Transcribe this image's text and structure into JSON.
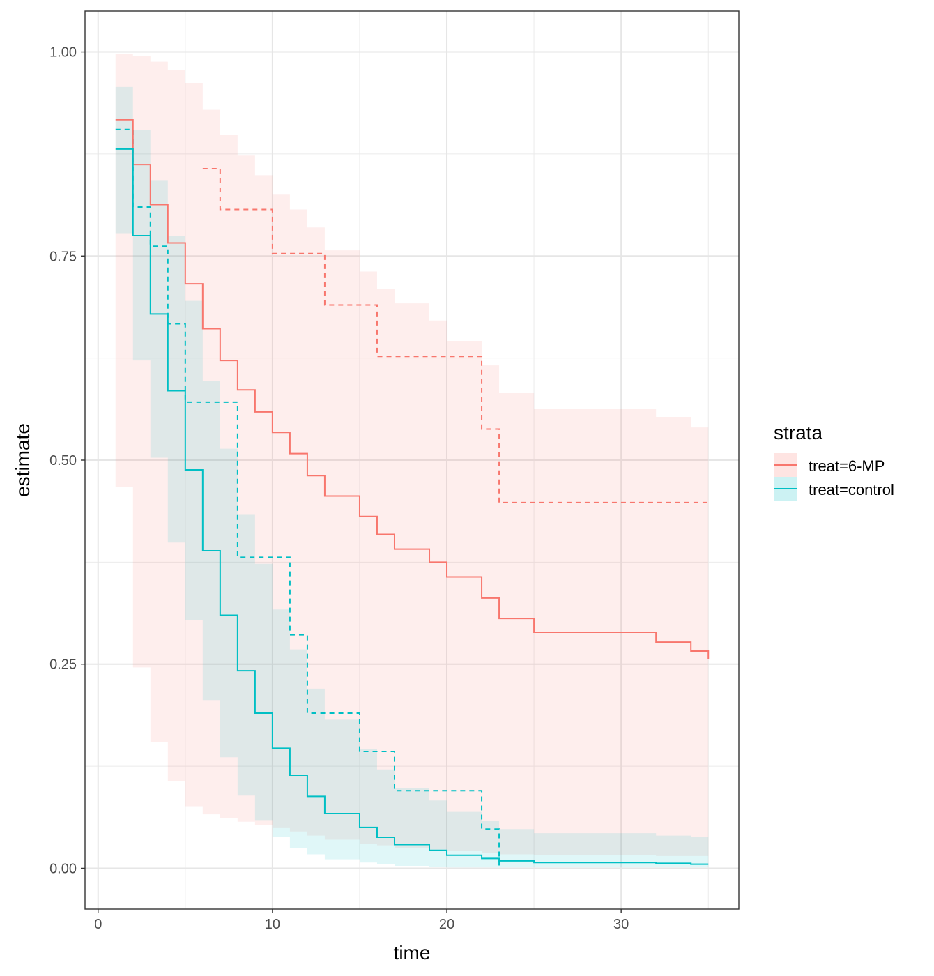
{
  "chart_data": {
    "type": "line",
    "xlabel": "time",
    "ylabel": "estimate",
    "xlim": [
      -0.75,
      36.75
    ],
    "ylim": [
      -0.05,
      1.05
    ],
    "xticks": [
      0,
      10,
      20,
      30
    ],
    "xtick_labels": [
      "0",
      "10",
      "20",
      "30"
    ],
    "yticks": [
      0.0,
      0.25,
      0.5,
      0.75,
      1.0
    ],
    "ytick_labels": [
      "0.00",
      "0.25",
      "0.50",
      "0.75",
      "1.00"
    ],
    "grid": true,
    "legend": {
      "title": "strata",
      "placement": "right",
      "entries": [
        "treat=6-MP",
        "treat=control"
      ]
    },
    "series": [
      {
        "name": "treat=6-MP",
        "color": "#F8766D",
        "steps": [
          {
            "x": 1,
            "estimate": 0.917,
            "lower": 0.467,
            "upper": 0.997
          },
          {
            "x": 2,
            "estimate": 0.862,
            "lower": 0.246,
            "upper": 0.995
          },
          {
            "x": 3,
            "estimate": 0.813,
            "lower": 0.155,
            "upper": 0.988
          },
          {
            "x": 4,
            "estimate": 0.766,
            "lower": 0.107,
            "upper": 0.978
          },
          {
            "x": 5,
            "estimate": 0.716,
            "lower": 0.076,
            "upper": 0.962
          },
          {
            "x": 6,
            "estimate": 0.661,
            "lower": 0.066,
            "upper": 0.929
          },
          {
            "x": 7,
            "estimate": 0.622,
            "lower": 0.061,
            "upper": 0.898
          },
          {
            "x": 8,
            "estimate": 0.586,
            "lower": 0.057,
            "upper": 0.873
          },
          {
            "x": 9,
            "estimate": 0.559,
            "lower": 0.053,
            "upper": 0.849
          },
          {
            "x": 10,
            "estimate": 0.534,
            "lower": 0.05,
            "upper": 0.826
          },
          {
            "x": 11,
            "estimate": 0.508,
            "lower": 0.045,
            "upper": 0.807
          },
          {
            "x": 12,
            "estimate": 0.481,
            "lower": 0.04,
            "upper": 0.785
          },
          {
            "x": 13,
            "estimate": 0.456,
            "lower": 0.035,
            "upper": 0.757
          },
          {
            "x": 15,
            "estimate": 0.431,
            "lower": 0.03,
            "upper": 0.731
          },
          {
            "x": 16,
            "estimate": 0.409,
            "lower": 0.028,
            "upper": 0.71
          },
          {
            "x": 17,
            "estimate": 0.391,
            "lower": 0.025,
            "upper": 0.692
          },
          {
            "x": 19,
            "estimate": 0.375,
            "lower": 0.023,
            "upper": 0.671
          },
          {
            "x": 20,
            "estimate": 0.357,
            "lower": 0.021,
            "upper": 0.646
          },
          {
            "x": 22,
            "estimate": 0.331,
            "lower": 0.019,
            "upper": 0.616
          },
          {
            "x": 23,
            "estimate": 0.306,
            "lower": 0.017,
            "upper": 0.582
          },
          {
            "x": 25,
            "estimate": 0.289,
            "lower": 0.016,
            "upper": 0.563
          },
          {
            "x": 32,
            "estimate": 0.277,
            "lower": 0.015,
            "upper": 0.553
          },
          {
            "x": 34,
            "estimate": 0.266,
            "lower": 0.015,
            "upper": 0.54
          },
          {
            "x": 35,
            "estimate": 0.256,
            "lower": 0.015,
            "upper": 0.54
          }
        ],
        "dashed": [
          {
            "x": 6,
            "y": 0.857
          },
          {
            "x": 7,
            "y": 0.807
          },
          {
            "x": 10,
            "y": 0.753
          },
          {
            "x": 13,
            "y": 0.69
          },
          {
            "x": 16,
            "y": 0.627
          },
          {
            "x": 22,
            "y": 0.538
          },
          {
            "x": 23,
            "y": 0.448
          },
          {
            "x": 35,
            "y": 0.448
          }
        ]
      },
      {
        "name": "treat=control",
        "color": "#00BFC4",
        "steps": [
          {
            "x": 1,
            "estimate": 0.881,
            "lower": 0.778,
            "upper": 0.957
          },
          {
            "x": 2,
            "estimate": 0.775,
            "lower": 0.622,
            "upper": 0.904
          },
          {
            "x": 3,
            "estimate": 0.679,
            "lower": 0.503,
            "upper": 0.843
          },
          {
            "x": 4,
            "estimate": 0.585,
            "lower": 0.399,
            "upper": 0.775
          },
          {
            "x": 5,
            "estimate": 0.488,
            "lower": 0.304,
            "upper": 0.695
          },
          {
            "x": 6,
            "estimate": 0.389,
            "lower": 0.206,
            "upper": 0.597
          },
          {
            "x": 7,
            "estimate": 0.31,
            "lower": 0.136,
            "upper": 0.514
          },
          {
            "x": 8,
            "estimate": 0.242,
            "lower": 0.089,
            "upper": 0.433
          },
          {
            "x": 9,
            "estimate": 0.19,
            "lower": 0.059,
            "upper": 0.373
          },
          {
            "x": 10,
            "estimate": 0.147,
            "lower": 0.038,
            "upper": 0.317
          },
          {
            "x": 11,
            "estimate": 0.114,
            "lower": 0.025,
            "upper": 0.268
          },
          {
            "x": 12,
            "estimate": 0.088,
            "lower": 0.017,
            "upper": 0.22
          },
          {
            "x": 13,
            "estimate": 0.067,
            "lower": 0.011,
            "upper": 0.182
          },
          {
            "x": 15,
            "estimate": 0.05,
            "lower": 0.007,
            "upper": 0.146
          },
          {
            "x": 16,
            "estimate": 0.038,
            "lower": 0.005,
            "upper": 0.121
          },
          {
            "x": 17,
            "estimate": 0.029,
            "lower": 0.003,
            "upper": 0.098
          },
          {
            "x": 19,
            "estimate": 0.022,
            "lower": 0.002,
            "upper": 0.083
          },
          {
            "x": 20,
            "estimate": 0.016,
            "lower": 0.001,
            "upper": 0.069
          },
          {
            "x": 22,
            "estimate": 0.012,
            "lower": 0.001,
            "upper": 0.058
          },
          {
            "x": 23,
            "estimate": 0.009,
            "lower": 0.001,
            "upper": 0.048
          },
          {
            "x": 25,
            "estimate": 0.007,
            "lower": 0.001,
            "upper": 0.043
          },
          {
            "x": 32,
            "estimate": 0.006,
            "lower": 0.001,
            "upper": 0.04
          },
          {
            "x": 34,
            "estimate": 0.005,
            "lower": 0.001,
            "upper": 0.038
          },
          {
            "x": 35,
            "estimate": 0.005,
            "lower": 0.001,
            "upper": 0.038
          }
        ],
        "dashed": [
          {
            "x": 1,
            "y": 0.905
          },
          {
            "x": 2,
            "y": 0.81
          },
          {
            "x": 3,
            "y": 0.762
          },
          {
            "x": 4,
            "y": 0.667
          },
          {
            "x": 5,
            "y": 0.571
          },
          {
            "x": 8,
            "y": 0.381
          },
          {
            "x": 11,
            "y": 0.286
          },
          {
            "x": 12,
            "y": 0.19
          },
          {
            "x": 15,
            "y": 0.143
          },
          {
            "x": 17,
            "y": 0.095
          },
          {
            "x": 22,
            "y": 0.048
          },
          {
            "x": 23,
            "y": 0.0
          }
        ]
      }
    ]
  }
}
